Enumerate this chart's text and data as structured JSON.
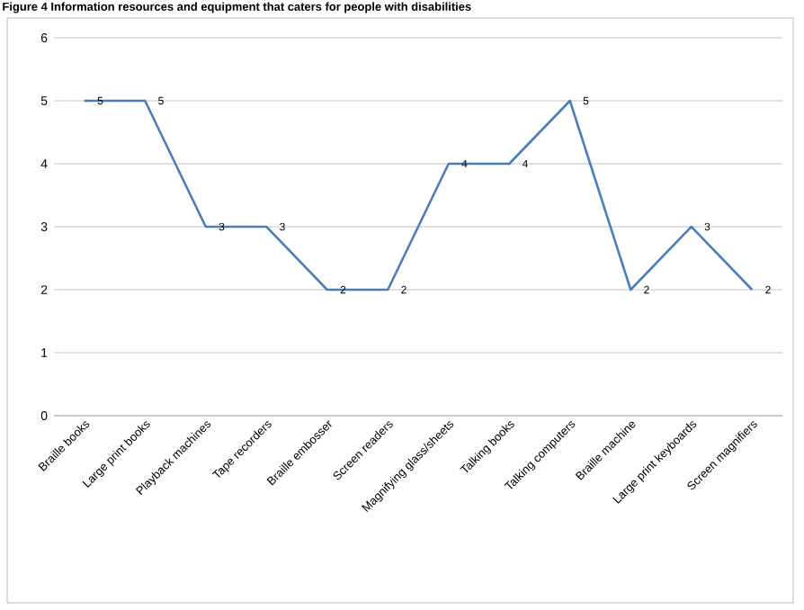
{
  "chart_data": {
    "type": "line",
    "title": "Figure 4 Information resources and equipment that caters for people with disabilities",
    "categories": [
      "Braille books",
      "Large print books",
      "Playback machines",
      "Tape recorders",
      "Braille embosser",
      "Screen readers",
      "Magnifying glass/sheets",
      "Talking books",
      "Talking computers",
      "Braille machine",
      "Large print keyboards",
      "Screen magnifiers"
    ],
    "values": [
      5,
      5,
      3,
      3,
      2,
      2,
      4,
      4,
      5,
      2,
      3,
      2
    ],
    "color": "#4a7ebb",
    "ylim": [
      0,
      6
    ],
    "yticks": [
      0,
      1,
      2,
      3,
      4,
      5,
      6
    ],
    "grid": "y",
    "data_labels": true,
    "marker": "none",
    "line_style": "solid"
  }
}
